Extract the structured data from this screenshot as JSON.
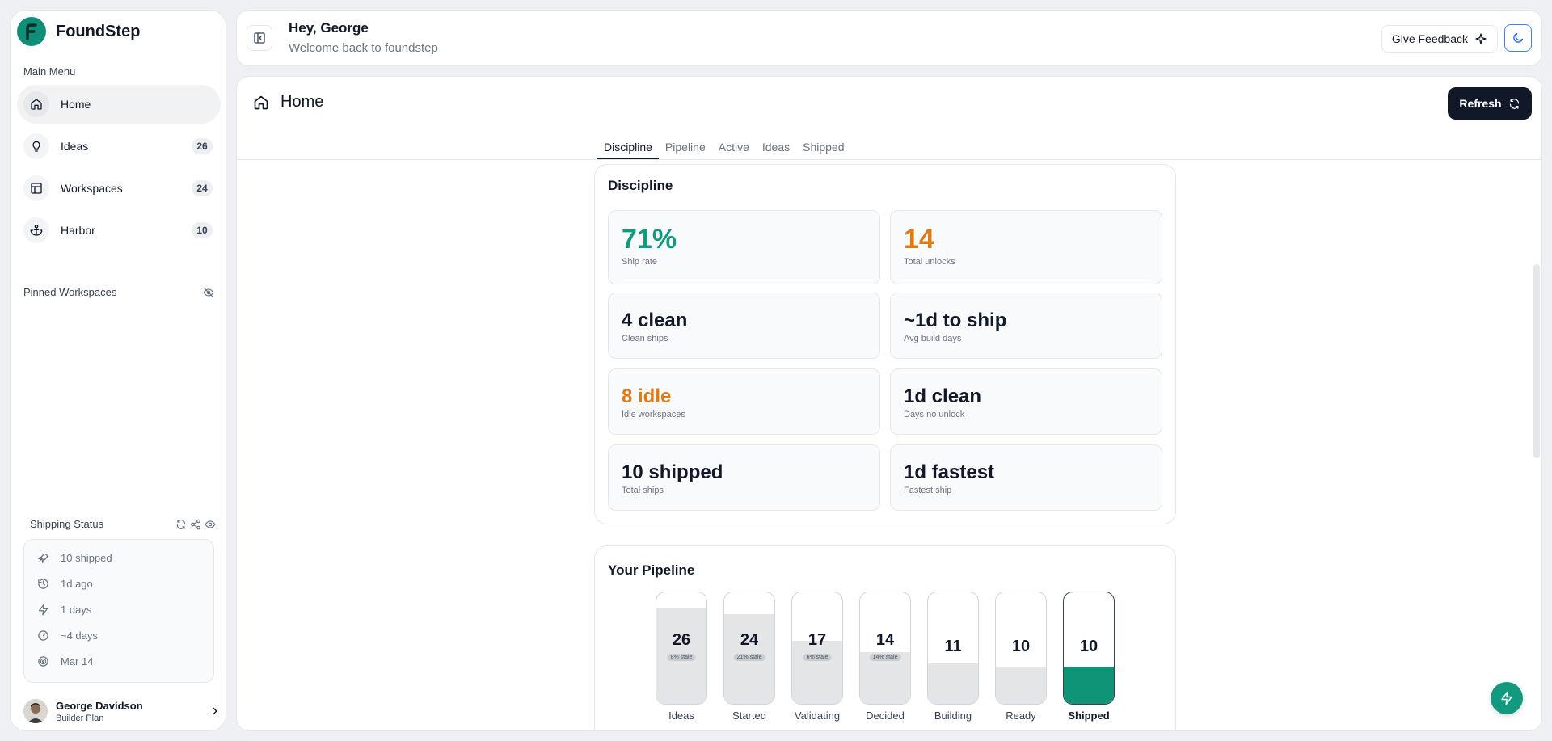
{
  "brand": {
    "name": "FoundStep"
  },
  "sidebar": {
    "main_menu_label": "Main Menu",
    "items": [
      {
        "label": "Home",
        "badge": ""
      },
      {
        "label": "Ideas",
        "badge": "26"
      },
      {
        "label": "Workspaces",
        "badge": "24"
      },
      {
        "label": "Harbor",
        "badge": "10"
      }
    ],
    "pinned_label": "Pinned Workspaces",
    "shipping": {
      "label": "Shipping Status",
      "rows": [
        "10 shipped",
        "1d ago",
        "1 days",
        "~4 days",
        "Mar 14"
      ]
    },
    "user": {
      "name": "George Davidson",
      "plan": "Builder Plan"
    }
  },
  "header": {
    "title": "Hey, George",
    "subtitle": "Welcome back to foundstep",
    "feedback_label": "Give Feedback"
  },
  "main": {
    "title": "Home",
    "refresh_label": "Refresh",
    "tabs": [
      "Discipline",
      "Pipeline",
      "Active",
      "Ideas",
      "Shipped"
    ],
    "active_tab": "Discipline"
  },
  "discipline": {
    "title": "Discipline",
    "stats": [
      {
        "value": "71%",
        "label": "Ship rate",
        "color": "#129a7e"
      },
      {
        "value": "14",
        "label": "Total unlocks",
        "color": "#e07a12"
      },
      {
        "value": "4 clean",
        "label": "Clean ships"
      },
      {
        "value": "~1d to ship",
        "label": "Avg build days"
      },
      {
        "value": "8 idle",
        "label": "Idle workspaces",
        "color": "#e07a12"
      },
      {
        "value": "1d clean",
        "label": "Days no unlock"
      },
      {
        "value": "10 shipped",
        "label": "Total ships"
      },
      {
        "value": "1d fastest",
        "label": "Fastest ship"
      }
    ]
  },
  "pipeline": {
    "title": "Your Pipeline",
    "stages": [
      {
        "label": "Ideas",
        "count": "26",
        "stale": "8% stale",
        "fill": 0.85
      },
      {
        "label": "Started",
        "count": "24",
        "stale": "21% stale",
        "fill": 0.79
      },
      {
        "label": "Validating",
        "count": "17",
        "stale": "6% stale",
        "fill": 0.56
      },
      {
        "label": "Decided",
        "count": "14",
        "stale": "14% stale",
        "fill": 0.46
      },
      {
        "label": "Building",
        "count": "11",
        "stale": "",
        "fill": 0.36
      },
      {
        "label": "Ready",
        "count": "10",
        "stale": "",
        "fill": 0.33
      },
      {
        "label": "Shipped",
        "count": "10",
        "stale": "",
        "fill": 0.33
      }
    ]
  },
  "colors": {
    "accent": "#129a7e",
    "warning": "#e07a12",
    "dark": "#111827"
  }
}
